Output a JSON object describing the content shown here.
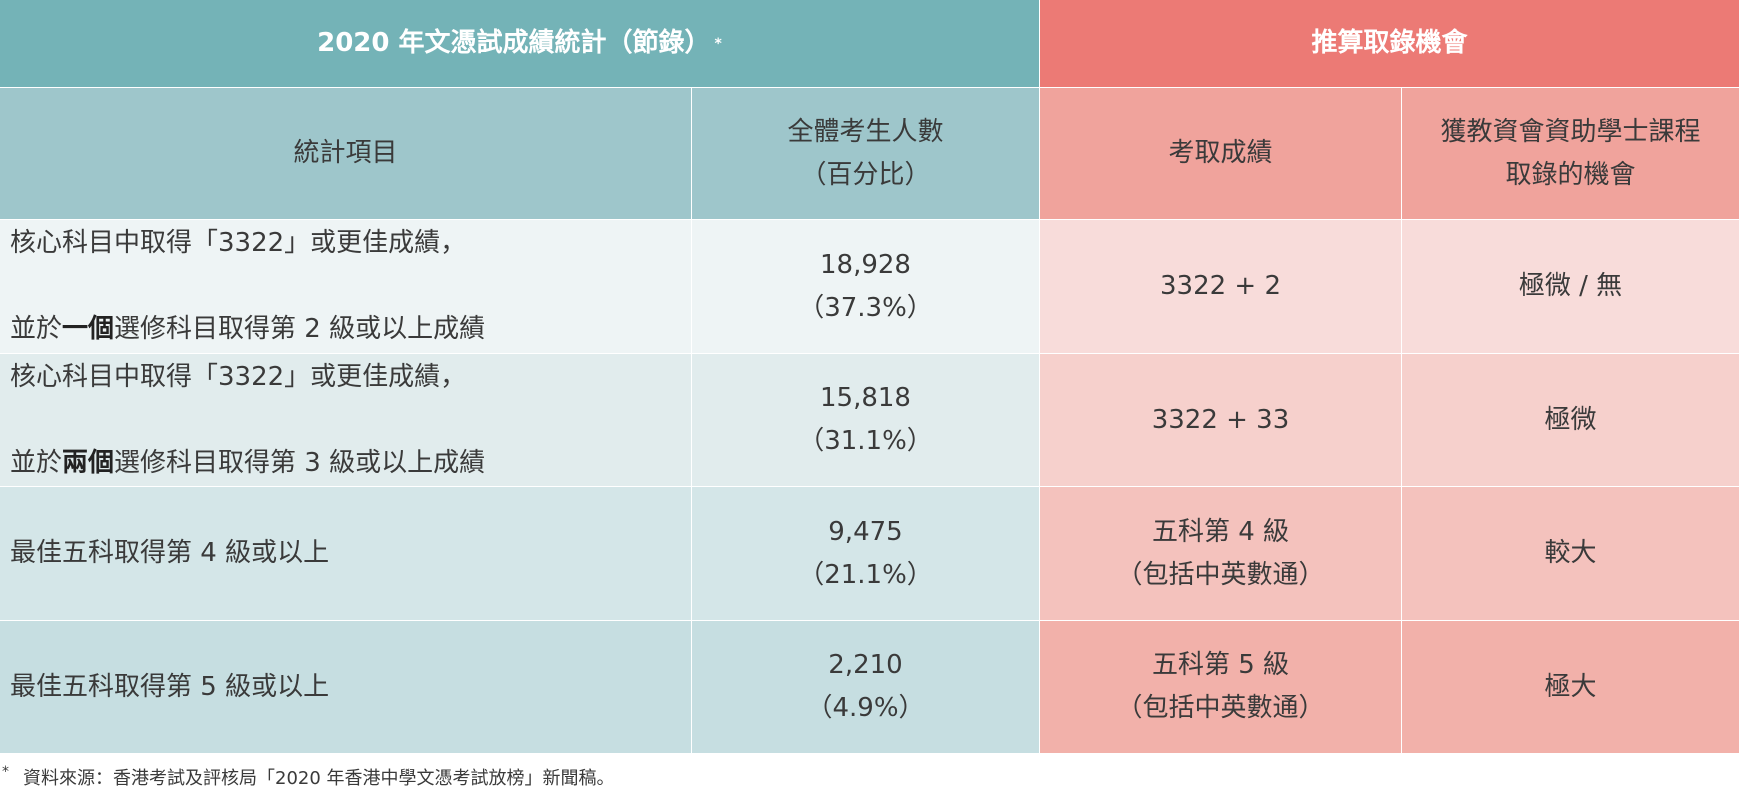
{
  "header": {
    "left_title": "2020 年文憑試成績統計（節錄）",
    "left_title_mark": "*",
    "right_title": "推算取錄機會"
  },
  "columns": {
    "item": "統計項目",
    "count": "全體考生人數\n（百分比）",
    "grade": "考取成績",
    "chance": "獲教資會資助學士課程\n取錄的機會"
  },
  "rows": [
    {
      "item_line1": "核心科目中取得「3322」或更佳成績，",
      "item_line2_pre": "並於",
      "item_line2_bold": "一個",
      "item_line2_post": "選修科目取得第 2 級或以上成績",
      "count": "18,928\n（37.3%）",
      "grade": "3322 + 2",
      "chance": "極微 / 無"
    },
    {
      "item_line1": "核心科目中取得「3322」或更佳成績，",
      "item_line2_pre": "並於",
      "item_line2_bold": "兩個",
      "item_line2_post": "選修科目取得第 3 級或以上成績",
      "count": "15,818\n（31.1%）",
      "grade": "3322 + 33",
      "chance": "極微"
    },
    {
      "item_line1": "最佳五科取得第 4 級或以上",
      "count": "9,475\n（21.1%）",
      "grade": "五科第 4 級\n（包括中英數通）",
      "chance": "較大"
    },
    {
      "item_line1": "最佳五科取得第 5 級或以上",
      "count": "2,210\n（4.9%）",
      "grade": "五科第 5 級\n（包括中英數通）",
      "chance": "極大"
    }
  ],
  "footnote": {
    "mark": "*",
    "text": "資料來源：香港考試及評核局「2020 年香港中學文憑考試放榜」新聞稿。"
  },
  "colors": {
    "teal_header": "#74b3b7",
    "red_header": "#ec7a75"
  }
}
